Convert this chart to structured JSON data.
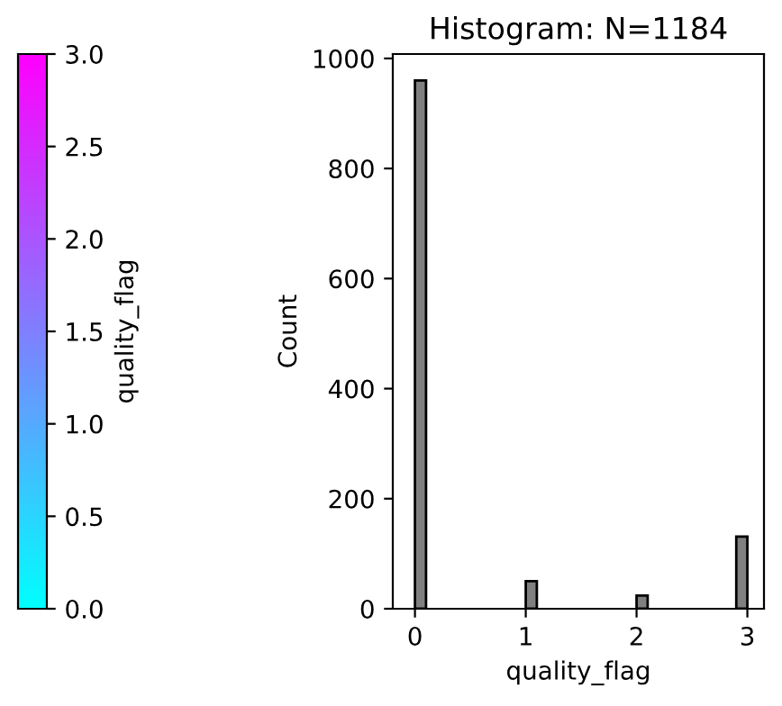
{
  "chart_data": {
    "type": "histogram",
    "title": "Histogram: N=1184",
    "xlabel": "quality_flag",
    "ylabel": "Count",
    "bins": [
      0,
      0.1,
      0.2,
      0.3,
      0.4,
      0.5,
      0.6,
      0.7,
      0.8,
      0.9,
      1.0,
      1.1,
      1.2,
      1.3,
      1.4,
      1.5,
      1.6,
      1.7,
      1.8,
      1.9,
      2.0,
      2.1,
      2.2,
      2.3,
      2.4,
      2.5,
      2.6,
      2.7,
      2.8,
      2.9,
      3.0
    ],
    "values": [
      960,
      0,
      0,
      0,
      0,
      0,
      0,
      0,
      0,
      0,
      50,
      0,
      0,
      0,
      0,
      0,
      0,
      0,
      0,
      0,
      24,
      0,
      0,
      0,
      0,
      0,
      0,
      0,
      0,
      131
    ],
    "color": "#808080",
    "xlim": [
      -0.2,
      3.15
    ],
    "xticks": [
      0,
      1,
      2,
      3
    ],
    "ylim": [
      0,
      1008
    ],
    "yticks": [
      0,
      200,
      400,
      600,
      800,
      1000
    ],
    "clabel": "quality_flag",
    "clim": [
      0,
      3
    ],
    "cticks": [
      {
        "value": 0,
        "label": "0.0"
      },
      0.5,
      {
        "value": 1,
        "label": "1.0"
      },
      1.5,
      {
        "value": 2,
        "label": "2.0"
      },
      2.5,
      {
        "value": 3,
        "label": "3.0"
      }
    ],
    "grid": false,
    "legend": false
  }
}
